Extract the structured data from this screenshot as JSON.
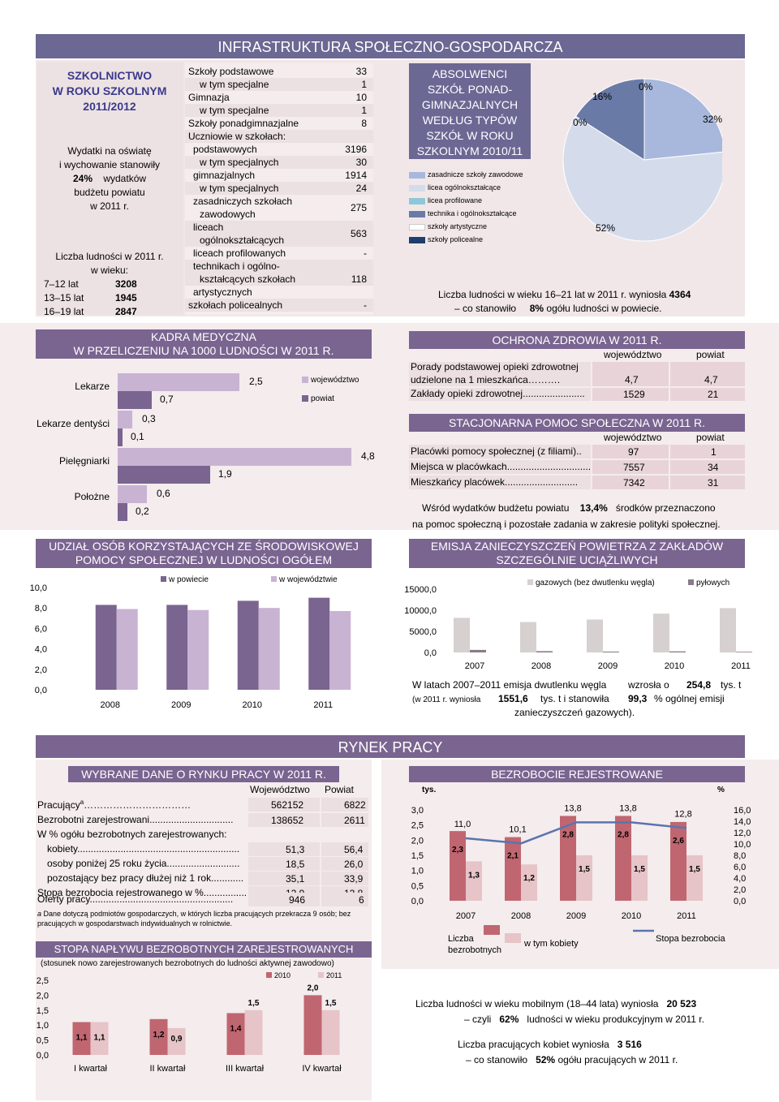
{
  "title": "INFRASTRUKTURA SPOŁECZNO-GOSPODARCZA",
  "school": {
    "title_lines": [
      "SZKOLNICTWO",
      "W ROKU SZKOLNYM",
      "2011/2012"
    ],
    "spend_lines": [
      "Wydatki na oświatę",
      "i wychowanie stanowiły",
      "wydatków",
      "budżetu powiatu",
      "w 2011 r."
    ],
    "spend_pct": "24%",
    "pop_lines": [
      "Liczba ludności w 2011 r.",
      "w wieku:"
    ],
    "pop": [
      {
        "label": "7–12 lat",
        "value": "3208"
      },
      {
        "label": "13–15 lat",
        "value": "1945"
      },
      {
        "label": "16–19 lat",
        "value": "2847"
      }
    ],
    "stats": [
      {
        "label": "Szkoły podstawowe",
        "value": "33"
      },
      {
        "label": "w tym specjalne",
        "value": "1"
      },
      {
        "label": "Gimnazja",
        "value": "10"
      },
      {
        "label": "w tym specjalne",
        "value": "1"
      },
      {
        "label": "Szkoły ponadgimnazjalne",
        "value": "8"
      },
      {
        "label": "Uczniowie w szkołach:",
        "value": ""
      },
      {
        "label": "podstawowych",
        "value": "3196"
      },
      {
        "label": "w tym specjalnych",
        "value": "30"
      },
      {
        "label": "gimnazjalnych",
        "value": "1914"
      },
      {
        "label": "w tym specjalnych",
        "value": "24"
      },
      {
        "label": "zasadniczych szkołach",
        "label2": "zawodowych",
        "value": "275"
      },
      {
        "label": "liceach",
        "label2": "ogólnokształcących",
        "value": "563"
      },
      {
        "label": "liceach profilowanych",
        "value": "-"
      },
      {
        "label": "technikach i ogólno-",
        "label2": "kształcących szkołach",
        "value": "118"
      },
      {
        "label": "artystycznych",
        "value": ""
      },
      {
        "label": "szkołach policealnych",
        "value": "-"
      }
    ]
  },
  "graduates": {
    "title_lines": [
      "ABSOLWENCI",
      "SZKÓŁ PONAD-",
      "GIMNAZJALNYCH",
      "WEDŁUG TYPÓW",
      "SZKÓŁ W ROKU",
      "SZKOLNYM 2010/11"
    ],
    "legend": [
      {
        "label": "zasadnicze szkoły zawodowe",
        "color": "#a8b8dc"
      },
      {
        "label": "licea ogólnokształcące",
        "color": "#d4dcec"
      },
      {
        "label": "licea profilowane",
        "color": "#8ec8d8"
      },
      {
        "label": "technika i ogólnokształcące",
        "color": "#6a7aa6"
      },
      {
        "label": "szkoły artystyczne",
        "color": "#ffffff"
      },
      {
        "label": "szkoły policealne",
        "color": "#1e3e6e"
      }
    ],
    "pie_labels": [
      "32%",
      "52%",
      "0%",
      "16%",
      "0%"
    ],
    "youth_sentence": "Liczba ludności w wieku 16–21 lat w 2011 r. wyniosła",
    "youth_value": "4364",
    "youth_tail_a": "– co stanowiło",
    "youth_pct": "8%",
    "youth_tail_b": "ogółu ludności w powiecie."
  },
  "medical": {
    "title_lines": [
      "KADRA MEDYCZNA",
      "W PRZELICZENIU NA 1000 LUDNOŚCI W 2011  R."
    ],
    "legend": [
      "województwo",
      "powiat"
    ]
  },
  "chart_data": [
    {
      "type": "bar",
      "id": "medical",
      "categories": [
        "Lekarze",
        "Lekarze dentyści",
        "Pielęgniarki",
        "Położne"
      ],
      "series": [
        {
          "name": "województwo",
          "values": [
            2.5,
            0.3,
            4.8,
            0.6
          ]
        },
        {
          "name": "powiat",
          "values": [
            0.7,
            0.1,
            1.9,
            0.2
          ]
        }
      ],
      "value_labels": [
        [
          "2,5",
          "0,3",
          "4,8",
          "0,6"
        ],
        [
          "0,7",
          "0,1",
          "1,9",
          "0,2"
        ]
      ]
    },
    {
      "type": "bar",
      "id": "social-assistance",
      "title": "UDZIAŁ OSÓB KORZYSTAJĄCYCH ZE ŚRODOWISKOWEJ POMOCY SPOŁECZNEJ W LUDNOŚCI OGÓŁEM",
      "categories": [
        "2008",
        "2009",
        "2010",
        "2011"
      ],
      "series": [
        {
          "name": "w powiecie",
          "values": [
            8.3,
            8.3,
            8.7,
            9.0
          ]
        },
        {
          "name": "w województwie",
          "values": [
            7.9,
            7.8,
            8.0,
            7.7
          ]
        }
      ],
      "y_ticks": [
        "10,0",
        "8,0",
        "6,0",
        "4,0",
        "2,0",
        "0,0"
      ],
      "ylim": [
        0,
        10
      ]
    },
    {
      "type": "bar",
      "id": "emissions",
      "title": "EMISJA ZANIECZYSZCZEŃ POWIETRZA Z ZAKŁADÓW SZCZEGÓLNIE UCIĄŻLIWYCH",
      "categories": [
        "2007",
        "2008",
        "2009",
        "2010",
        "2011"
      ],
      "series": [
        {
          "name": "gazowych (bez dwutlenku węgla)",
          "values": [
            8200,
            7200,
            7800,
            9200,
            10500
          ]
        },
        {
          "name": "pyłowych",
          "values": [
            600,
            300,
            200,
            250,
            150
          ]
        }
      ],
      "y_ticks": [
        "15000,0",
        "10000,0",
        "5000,0",
        "0,0"
      ],
      "ylim": [
        0,
        15000
      ]
    },
    {
      "type": "bar",
      "id": "inflow",
      "title": "STOPA NAPŁYWU BEZROBOTNYCH ZAREJESTROWANYCH",
      "subtitle": "(stosunek nowo zarejestrowanych bezrobotnych do ludności aktywnej zawodowo)",
      "categories": [
        "I kwartał",
        "II kwartał",
        "III kwartał",
        "IV kwartał"
      ],
      "series": [
        {
          "name": "2010",
          "values": [
            1.1,
            1.2,
            1.4,
            2.0
          ]
        },
        {
          "name": "2011",
          "values": [
            1.1,
            0.9,
            1.5,
            1.5
          ]
        }
      ],
      "value_labels": [
        [
          "1,1",
          "1,2",
          "1,4",
          "2,0"
        ],
        [
          "1,1",
          "0,9",
          "1,5",
          "1,5"
        ]
      ],
      "y_ticks": [
        "2,5",
        "2,0",
        "1,5",
        "1,0",
        "0,5",
        "0,0"
      ],
      "ylim": [
        0,
        2.5
      ]
    },
    {
      "type": "bar",
      "id": "unemployment",
      "title": "BEZROBOCIE REJESTROWANE",
      "categories": [
        "2007",
        "2008",
        "2009",
        "2010",
        "2011"
      ],
      "series": [
        {
          "name": "Liczba bezrobotnych",
          "values": [
            2.3,
            2.1,
            2.8,
            2.8,
            2.6
          ],
          "labels": [
            "2,3",
            "2,1",
            "2,8",
            "2,8",
            "2,6"
          ]
        },
        {
          "name": "w tym kobiety",
          "values": [
            1.3,
            1.2,
            1.5,
            1.5,
            1.5
          ],
          "labels": [
            "1,3",
            "1,2",
            "1,5",
            "1,5",
            "1,5"
          ]
        },
        {
          "name": "Stopa bezrobocia",
          "values": [
            11.0,
            10.1,
            13.8,
            13.8,
            12.8
          ],
          "labels": [
            "11,0",
            "10,1",
            "13,8",
            "13,8",
            "12,8"
          ]
        }
      ],
      "y_left_unit": "tys.",
      "y_right_unit": "%",
      "y_left_ticks": [
        "3,0",
        "2,5",
        "2,0",
        "1,5",
        "1,0",
        "0,5",
        "0,0"
      ],
      "y_right_ticks": [
        "16,0",
        "14,0",
        "12,0",
        "10,0",
        "8,0",
        "6,0",
        "4,0",
        "2,0",
        "0,0"
      ],
      "ylim_left": [
        0,
        3
      ],
      "ylim_right": [
        0,
        16
      ]
    }
  ],
  "health": {
    "title": "OCHRONA ZDROWIA W 2011 R.",
    "headers": [
      "województwo",
      "powiat"
    ],
    "rows": [
      {
        "label": "Porady podstawowej opieki zdrowotnej",
        "label2": "udzielone na 1 mieszkańca……….",
        "v1": "4,7",
        "v2": "4,7"
      },
      {
        "label": "Zakłady opieki zdrowotnej.......................",
        "v1": "1529",
        "v2": "21"
      }
    ]
  },
  "social": {
    "title": "STACJONARNA POMOC SPOŁECZNA W 2011 R.",
    "headers": [
      "województwo",
      "powiat"
    ],
    "rows": [
      {
        "label": "Placówki pomocy społecznej (z filiami)..",
        "v1": "97",
        "v2": "1"
      },
      {
        "label": "Miejsca w placówkach...............................",
        "v1": "7557",
        "v2": "34"
      },
      {
        "label": "Mieszkańcy placówek...........................",
        "v1": "7342",
        "v2": "31"
      }
    ],
    "sentence_a": "Wśród wydatków budżetu powiatu",
    "sentence_pct": "13,4%",
    "sentence_b": "środków przeznaczono",
    "sentence_c": "na pomoc społeczną i pozostałe zadania w zakresie polityki społecznej."
  },
  "social_chart": {
    "title_lines": [
      "UDZIAŁ OSÓB KORZYSTAJĄCYCH ZE ŚRODOWISKOWEJ",
      "POMOCY SPOŁECZNEJ W LUDNOŚCI OGÓŁEM"
    ]
  },
  "emission": {
    "title_lines": [
      "EMISJA ZANIECZYSZCZEŃ POWIETRZA Z ZAKŁADÓW",
      "SZCZEGÓLNIE UCIĄŻLIWYCH"
    ],
    "text_a": "W latach 2007–2011 emisja dwutlenku węgla",
    "text_b": "wzrosła o",
    "value_a": "254,8",
    "text_c": "tys. t",
    "text_d": "(w 2011 r. wyniosła",
    "value_b": "1551,6",
    "text_e": "tys. t i stanowiła",
    "value_c": "99,3",
    "text_f": "% ogólnej emisji",
    "text_g": "zanieczyszczeń gazowych)."
  },
  "labor": {
    "section_title": "RYNEK PRACY",
    "title": "WYBRANE DANE O RYNKU PRACY W 2011 R.",
    "headers": [
      "Województwo",
      "Powiat"
    ],
    "rows": [
      {
        "label": "Pracujący",
        "sup": "a",
        "dots": "……………………………",
        "v1": "562152",
        "v2": "6822"
      },
      {
        "label": "Bezrobotni zarejestrowani...............................",
        "v1": "138652",
        "v2": "2611"
      },
      {
        "label": "W % ogółu bezrobotnych zarejestrowanych:",
        "v1": "",
        "v2": ""
      },
      {
        "label": "kobiety............................................................",
        "v1": "51,3",
        "v2": "56,4"
      },
      {
        "label": "osoby poniżej 25 roku życia...........................",
        "v1": "18,5",
        "v2": "26,0"
      },
      {
        "label": "pozostający bez pracy dłużej niż 1 rok............",
        "v1": "35,1",
        "v2": "33,9"
      },
      {
        "label": "Stopa bezrobocia rejestrowanego w %................",
        "v1": "12,9",
        "v2": "12,8"
      },
      {
        "label": "Oferty pracy.....................................................",
        "v1": "946",
        "v2": "6"
      }
    ],
    "footnote_a": "a",
    "footnote": "Dane dotyczą podmiotów gospodarczych, w których liczba pracujących przekracza 9 osób; bez pracujących w gospodarstwach indywidualnych w rolnictwie."
  },
  "unemp": {
    "legend_a": [
      "Liczba",
      "bezrobotnych"
    ],
    "legend_b": "w tym kobiety",
    "legend_c": "Stopa bezrobocia",
    "mobile_a": "Liczba ludności w wieku mobilnym (18–44 lata) wyniosła",
    "mobile_value": "20 523",
    "mobile_b": "– czyli",
    "mobile_pct": "62%",
    "mobile_c": "ludności w wieku produkcyjnym w 2011 r.",
    "women_a": "Liczba pracujących kobiet wyniosła",
    "women_value": "3 516",
    "women_b": "– co stanowiło",
    "women_pct": "52%",
    "women_c": "ogółu pracujących w 2011 r."
  }
}
